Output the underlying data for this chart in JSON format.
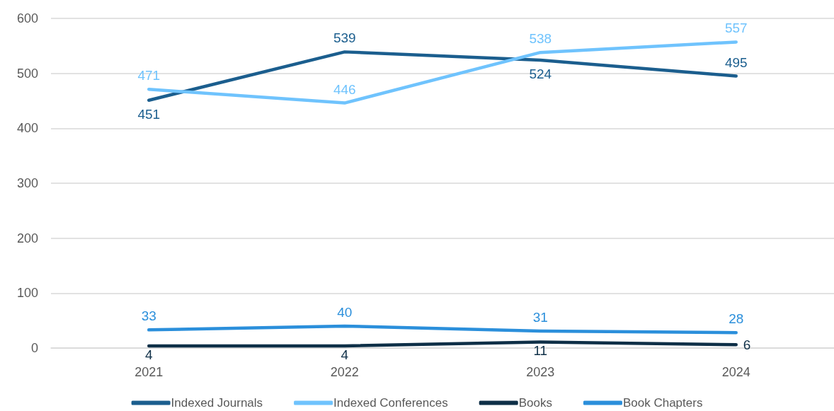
{
  "chart_data": {
    "type": "line",
    "categories": [
      "2021",
      "2022",
      "2023",
      "2024"
    ],
    "series": [
      {
        "name": "Indexed Journals",
        "color": "#1b5e8e",
        "values": [
          451,
          539,
          524,
          495
        ]
      },
      {
        "name": "Indexed Conferences",
        "color": "#6fc3fd",
        "values": [
          471,
          446,
          538,
          557
        ]
      },
      {
        "name": "Books",
        "color": "#0e2f47",
        "values": [
          4,
          4,
          11,
          6
        ]
      },
      {
        "name": "Book Chapters",
        "color": "#2b8fdb",
        "values": [
          33,
          40,
          31,
          28
        ]
      }
    ],
    "ylim": [
      0,
      600
    ],
    "yticks": [
      0,
      100,
      200,
      300,
      400,
      500,
      600
    ],
    "grid": "y",
    "legend": "bottom",
    "marker": "none",
    "line_style": "solid",
    "data_labels": true
  }
}
